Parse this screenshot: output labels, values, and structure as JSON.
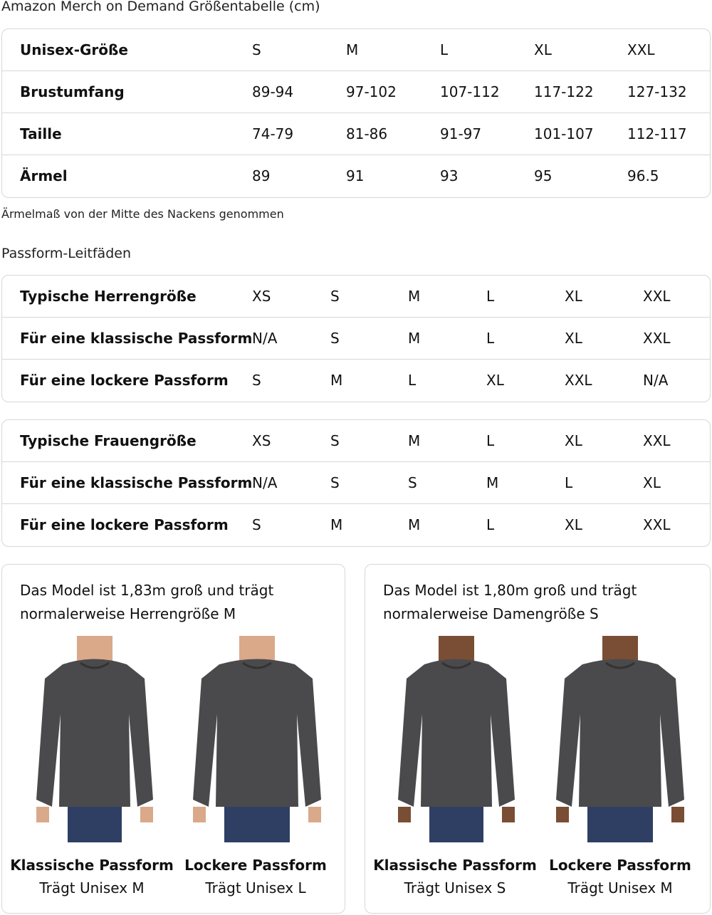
{
  "size_chart": {
    "title": "Amazon Merch on Demand Größentabelle (cm)",
    "rows": [
      {
        "label": "Unisex-Größe",
        "values": [
          "S",
          "M",
          "L",
          "XL",
          "XXL"
        ]
      },
      {
        "label": "Brustumfang",
        "values": [
          "89-94",
          "97-102",
          "107-112",
          "117-122",
          "127-132"
        ]
      },
      {
        "label": "Taille",
        "values": [
          "74-79",
          "81-86",
          "91-97",
          "101-107",
          "112-117"
        ]
      },
      {
        "label": "Ärmel",
        "values": [
          "89",
          "91",
          "93",
          "95",
          "96.5"
        ]
      }
    ],
    "note": "Ärmelmaß von der Mitte des Nackens genommen"
  },
  "fit_guides": {
    "title": "Passform-Leitfäden",
    "men": [
      {
        "label": "Typische Herrengröße",
        "values": [
          "XS",
          "S",
          "M",
          "L",
          "XL",
          "XXL"
        ]
      },
      {
        "label": "Für eine klassische Passform",
        "values": [
          "N/A",
          "S",
          "M",
          "L",
          "XL",
          "XXL"
        ]
      },
      {
        "label": "Für eine lockere Passform",
        "values": [
          "S",
          "M",
          "L",
          "XL",
          "XXL",
          "N/A"
        ]
      }
    ],
    "women": [
      {
        "label": "Typische Frauengröße",
        "values": [
          "XS",
          "S",
          "M",
          "L",
          "XL",
          "XXL"
        ]
      },
      {
        "label": "Für eine klassische Passform",
        "values": [
          "N/A",
          "S",
          "S",
          "M",
          "L",
          "XL"
        ]
      },
      {
        "label": "Für eine lockere Passform",
        "values": [
          "S",
          "M",
          "M",
          "L",
          "XL",
          "XXL"
        ]
      }
    ]
  },
  "models": [
    {
      "description_line1": "Das Model ist 1,83m groß und trägt",
      "description_line2": "normalerweise Herrengröße M",
      "photos": [
        {
          "fit": "Klassische Passform",
          "wears": "Trägt Unisex M"
        },
        {
          "fit": "Lockere Passform",
          "wears": "Trägt Unisex L"
        }
      ]
    },
    {
      "description_line1": "Das Model ist 1,80m groß und trägt",
      "description_line2": "normalerweise Damengröße S",
      "photos": [
        {
          "fit": "Klassische Passform",
          "wears": "Trägt Unisex S"
        },
        {
          "fit": "Lockere Passform",
          "wears": "Trägt Unisex M"
        }
      ]
    }
  ],
  "colors": {
    "border": "#d5d9d9",
    "sweatshirt": "#4a4a4c",
    "jeans": "#2e3f63"
  }
}
